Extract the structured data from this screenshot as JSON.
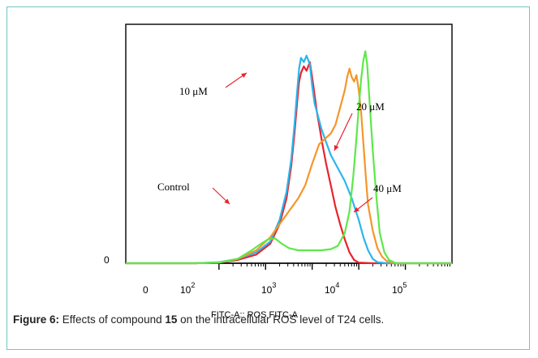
{
  "chart_data": {
    "type": "line",
    "xlabel": "FITC-A:: ROS FITC-A",
    "x_scale": "log",
    "xlim": [
      -1,
      6
    ],
    "x_ticks": [
      {
        "value": -0.5,
        "label": "0"
      },
      {
        "value": 2,
        "label": "10",
        "exp": "2"
      },
      {
        "value": 3,
        "label": "10",
        "exp": "3"
      },
      {
        "value": 4,
        "label": "10",
        "exp": "4"
      },
      {
        "value": 5,
        "label": "10",
        "exp": "5"
      }
    ],
    "y_ticks": [
      {
        "value": 0,
        "label": "0"
      }
    ],
    "ylim": [
      0,
      100
    ],
    "series": [
      {
        "name": "Control",
        "color": "#e8242c",
        "points": [
          [
            -1,
            0
          ],
          [
            0.5,
            0
          ],
          [
            1.0,
            0.3
          ],
          [
            1.4,
            1.5
          ],
          [
            1.8,
            4
          ],
          [
            2.1,
            9
          ],
          [
            2.3,
            18
          ],
          [
            2.45,
            30
          ],
          [
            2.55,
            45
          ],
          [
            2.62,
            60
          ],
          [
            2.68,
            75
          ],
          [
            2.72,
            84
          ],
          [
            2.76,
            88
          ],
          [
            2.82,
            91
          ],
          [
            2.88,
            89
          ],
          [
            2.95,
            93
          ],
          [
            3.0,
            86
          ],
          [
            3.05,
            78
          ],
          [
            3.1,
            70
          ],
          [
            3.15,
            64
          ],
          [
            3.22,
            55
          ],
          [
            3.3,
            46
          ],
          [
            3.4,
            36
          ],
          [
            3.5,
            26
          ],
          [
            3.6,
            18
          ],
          [
            3.7,
            11
          ],
          [
            3.8,
            5
          ],
          [
            3.9,
            1.5
          ],
          [
            4.0,
            0.3
          ],
          [
            4.3,
            0
          ],
          [
            6,
            0
          ]
        ]
      },
      {
        "name": "10 μM",
        "color": "#2ab6ec",
        "points": [
          [
            -1,
            0
          ],
          [
            0.5,
            0
          ],
          [
            1.0,
            0.5
          ],
          [
            1.4,
            2
          ],
          [
            1.8,
            5
          ],
          [
            2.1,
            10
          ],
          [
            2.3,
            20
          ],
          [
            2.45,
            33
          ],
          [
            2.55,
            48
          ],
          [
            2.62,
            64
          ],
          [
            2.68,
            80
          ],
          [
            2.72,
            90
          ],
          [
            2.76,
            95
          ],
          [
            2.82,
            93
          ],
          [
            2.88,
            96
          ],
          [
            2.95,
            92
          ],
          [
            3.0,
            82
          ],
          [
            3.05,
            74
          ],
          [
            3.1,
            70
          ],
          [
            3.2,
            62
          ],
          [
            3.3,
            56
          ],
          [
            3.4,
            50
          ],
          [
            3.55,
            44
          ],
          [
            3.7,
            38
          ],
          [
            3.85,
            30
          ],
          [
            4.0,
            20
          ],
          [
            4.1,
            12
          ],
          [
            4.2,
            6
          ],
          [
            4.3,
            2
          ],
          [
            4.4,
            0.5
          ],
          [
            4.6,
            0
          ],
          [
            6,
            0
          ]
        ]
      },
      {
        "name": "20 μM",
        "color": "#f5962a",
        "points": [
          [
            -1,
            0
          ],
          [
            0.5,
            0
          ],
          [
            1.0,
            0.3
          ],
          [
            1.4,
            2
          ],
          [
            1.8,
            6
          ],
          [
            2.1,
            12
          ],
          [
            2.3,
            18
          ],
          [
            2.5,
            24
          ],
          [
            2.7,
            30
          ],
          [
            2.85,
            36
          ],
          [
            3.0,
            46
          ],
          [
            3.15,
            55
          ],
          [
            3.3,
            58
          ],
          [
            3.4,
            60
          ],
          [
            3.5,
            64
          ],
          [
            3.6,
            72
          ],
          [
            3.7,
            80
          ],
          [
            3.75,
            86
          ],
          [
            3.8,
            90
          ],
          [
            3.85,
            86
          ],
          [
            3.9,
            84
          ],
          [
            3.95,
            87
          ],
          [
            4.0,
            80
          ],
          [
            4.05,
            70
          ],
          [
            4.1,
            55
          ],
          [
            4.15,
            40
          ],
          [
            4.2,
            27
          ],
          [
            4.3,
            15
          ],
          [
            4.4,
            7
          ],
          [
            4.5,
            3
          ],
          [
            4.6,
            1
          ],
          [
            4.8,
            0
          ],
          [
            6,
            0
          ]
        ]
      },
      {
        "name": "40 μM",
        "color": "#5ee84a",
        "points": [
          [
            -1,
            0
          ],
          [
            0.5,
            0
          ],
          [
            1.0,
            0.3
          ],
          [
            1.4,
            2
          ],
          [
            1.7,
            6
          ],
          [
            1.9,
            9
          ],
          [
            2.05,
            11
          ],
          [
            2.2,
            11.5
          ],
          [
            2.35,
            9
          ],
          [
            2.5,
            7
          ],
          [
            2.7,
            6
          ],
          [
            2.9,
            6
          ],
          [
            3.2,
            6
          ],
          [
            3.4,
            6.5
          ],
          [
            3.55,
            8
          ],
          [
            3.7,
            14
          ],
          [
            3.8,
            24
          ],
          [
            3.88,
            40
          ],
          [
            3.95,
            58
          ],
          [
            4.0,
            72
          ],
          [
            4.05,
            85
          ],
          [
            4.1,
            94
          ],
          [
            4.14,
            98
          ],
          [
            4.18,
            92
          ],
          [
            4.23,
            75
          ],
          [
            4.3,
            52
          ],
          [
            4.38,
            30
          ],
          [
            4.45,
            14
          ],
          [
            4.55,
            5
          ],
          [
            4.65,
            1.5
          ],
          [
            4.8,
            0
          ],
          [
            6,
            0
          ]
        ]
      }
    ],
    "annotations": [
      {
        "text": "10 μM",
        "series": "10 μM"
      },
      {
        "text": "20 μM",
        "series": "20 μM"
      },
      {
        "text": "Control",
        "series": "Control"
      },
      {
        "text": "40 μM",
        "series": "40 μM"
      }
    ],
    "grid": false,
    "legend": "none"
  },
  "caption": {
    "prefix": "Figure 6:",
    "text_before": " Effects of compound ",
    "compound": "15",
    "text_after": " on the intracellular ROS level of T24 cells."
  },
  "colors": {
    "frame_border": "#6cc7c3",
    "axis": "#000000"
  }
}
